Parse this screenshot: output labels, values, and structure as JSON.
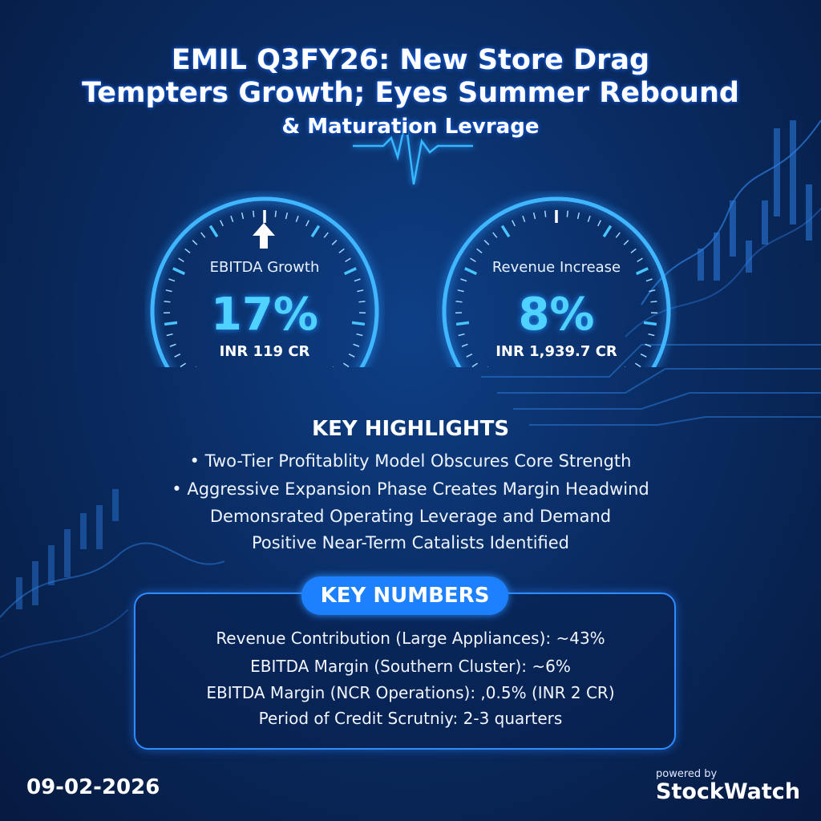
{
  "title": {
    "line1": "EMIL Q3FY26: New Store Drag",
    "line2": "Tempters Growth; Eyes Summer Rebound",
    "line3": "& Maturation Levrage"
  },
  "gauges": [
    {
      "label": "EBITDA Growth",
      "value": "17%",
      "sub": "INR 119 CR",
      "icon": "up-arrow-icon"
    },
    {
      "label": "Revenue Increase",
      "value": "8%",
      "sub": "INR 1,939.7 CR"
    }
  ],
  "highlights": {
    "title": "KEY HIGHLIGHTS",
    "items": [
      "• Two-Tier Profitablity Model Obscures Core Strength",
      "• Aggressive Expansion Phase Creates Margin Headwind",
      "Demonsrated Operating Leverage and Demand",
      "Positive Near-Term Catalists Identified"
    ]
  },
  "key_numbers": {
    "title": "KEY NUMBERS",
    "items": [
      "Revenue Contribution (Large Appliances): ~43%",
      "EBITDA Margin (Southern Cluster): ~6%",
      "EBITDA Margin (NCR Operations): ,0.5% (INR 2 CR)",
      "Period of Credit Scrutniy: 2-3 quarters"
    ]
  },
  "footer": {
    "date": "09-02-2026",
    "powered_by": "powered by",
    "brand": "StockWatch"
  },
  "colors": {
    "background": "#0a2c63",
    "accent": "#4fd2ff",
    "pill": "#1c80ff",
    "border": "#2f8cff"
  }
}
